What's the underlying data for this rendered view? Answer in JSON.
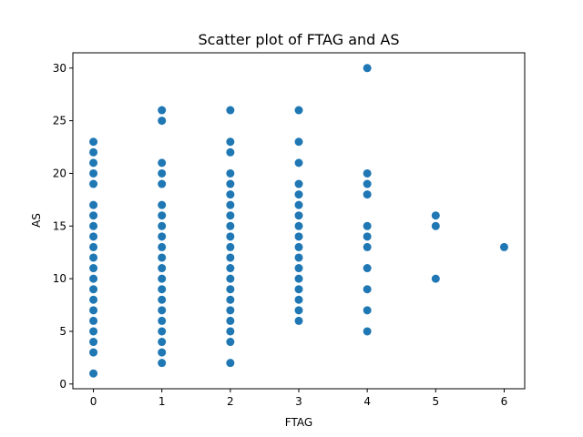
{
  "chart_data": {
    "type": "scatter",
    "title": "Scatter plot of FTAG and AS",
    "xlabel": "FTAG",
    "ylabel": "AS",
    "xlim": [
      -0.3,
      6.3
    ],
    "ylim": [
      -0.45,
      31.45
    ],
    "xticks": [
      0,
      1,
      2,
      3,
      4,
      5,
      6
    ],
    "yticks": [
      0,
      5,
      10,
      15,
      20,
      25,
      30
    ],
    "grid": false,
    "legend": "none",
    "marker_color": "#1f77b4",
    "points": [
      {
        "x": 0,
        "y": [
          1,
          3,
          4,
          5,
          6,
          7,
          8,
          9,
          10,
          11,
          12,
          13,
          14,
          15,
          16,
          17,
          19,
          20,
          21,
          22,
          23
        ]
      },
      {
        "x": 1,
        "y": [
          2,
          3,
          4,
          5,
          6,
          7,
          8,
          9,
          10,
          11,
          12,
          13,
          14,
          15,
          16,
          17,
          19,
          20,
          21,
          25,
          26
        ]
      },
      {
        "x": 2,
        "y": [
          2,
          4,
          5,
          6,
          7,
          8,
          9,
          10,
          11,
          12,
          13,
          14,
          15,
          16,
          17,
          18,
          19,
          20,
          22,
          23,
          26
        ]
      },
      {
        "x": 3,
        "y": [
          6,
          7,
          8,
          9,
          10,
          11,
          12,
          13,
          14,
          15,
          16,
          17,
          18,
          19,
          21,
          23,
          26
        ]
      },
      {
        "x": 4,
        "y": [
          5,
          7,
          9,
          11,
          13,
          14,
          15,
          18,
          19,
          20,
          30
        ]
      },
      {
        "x": 5,
        "y": [
          10,
          15,
          16
        ]
      },
      {
        "x": 6,
        "y": [
          13
        ]
      }
    ]
  }
}
